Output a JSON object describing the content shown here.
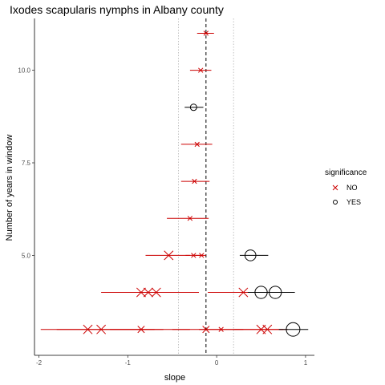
{
  "chart_data": {
    "type": "scatter",
    "title": "Ixodes scapularis nymphs in Albany county",
    "xlabel": "slope",
    "ylabel": "Number of years in window",
    "xlim": [
      -2.05,
      1.1
    ],
    "ylim": [
      2.3,
      11.4
    ],
    "x_ticks": [
      -2,
      -1,
      0,
      1
    ],
    "x_tick_labels": [
      "-2",
      "-1",
      "0",
      "1"
    ],
    "y_ticks": [
      5.0,
      7.5,
      10.0
    ],
    "y_tick_labels": [
      "5.0",
      "7.5",
      "10.0"
    ],
    "grid": false,
    "legend": {
      "title": "significance",
      "position": "right",
      "entries": [
        {
          "label": "NO",
          "shape": "x",
          "color": "#cc0000"
        },
        {
          "label": "YES",
          "shape": "circle",
          "color": "#000000"
        }
      ]
    },
    "reference_lines": {
      "mean_slope": -0.12,
      "dotted_low": -0.43,
      "dotted_high": 0.19
    },
    "series": [
      {
        "name": "NO",
        "shape": "x",
        "color": "#cc0000",
        "points": [
          {
            "x": -0.12,
            "y": 11,
            "xmin": -0.22,
            "xmax": -0.03,
            "size": 1
          },
          {
            "x": -0.18,
            "y": 10,
            "xmin": -0.3,
            "xmax": -0.06,
            "size": 1
          },
          {
            "x": -0.22,
            "y": 8,
            "xmin": -0.4,
            "xmax": -0.05,
            "size": 1
          },
          {
            "x": -0.25,
            "y": 7,
            "xmin": -0.4,
            "xmax": -0.08,
            "size": 1
          },
          {
            "x": -0.3,
            "y": 6,
            "xmin": -0.56,
            "xmax": -0.09,
            "size": 1
          },
          {
            "x": -0.54,
            "y": 5,
            "xmin": -0.8,
            "xmax": -0.3,
            "size": 2
          },
          {
            "x": -0.26,
            "y": 5,
            "xmin": -0.35,
            "xmax": -0.17,
            "size": 1
          },
          {
            "x": -0.17,
            "y": 5,
            "xmin": -0.24,
            "xmax": -0.12,
            "size": 1
          },
          {
            "x": -0.85,
            "y": 4,
            "xmin": -1.3,
            "xmax": -0.2,
            "size": 2
          },
          {
            "x": -0.77,
            "y": 4,
            "xmin": -1.1,
            "xmax": -0.3,
            "size": 2
          },
          {
            "x": -0.68,
            "y": 4,
            "xmin": -1.0,
            "xmax": -0.2,
            "size": 2
          },
          {
            "x": 0.3,
            "y": 4,
            "xmin": -0.1,
            "xmax": 0.6,
            "size": 2
          },
          {
            "x": -1.45,
            "y": 3,
            "xmin": -1.98,
            "xmax": -0.7,
            "size": 2
          },
          {
            "x": -1.3,
            "y": 3,
            "xmin": -1.8,
            "xmax": -0.6,
            "size": 2
          },
          {
            "x": -0.85,
            "y": 3,
            "xmin": -1.2,
            "xmax": -0.3,
            "size": 1.5
          },
          {
            "x": -0.12,
            "y": 3,
            "xmin": -0.5,
            "xmax": 0.25,
            "size": 1.5
          },
          {
            "x": 0.05,
            "y": 3,
            "xmin": -0.2,
            "xmax": 0.3,
            "size": 1
          },
          {
            "x": 0.5,
            "y": 3,
            "xmin": 0.2,
            "xmax": 0.75,
            "size": 2
          },
          {
            "x": 0.57,
            "y": 3,
            "xmin": 0.25,
            "xmax": 0.8,
            "size": 2
          }
        ]
      },
      {
        "name": "YES",
        "shape": "circle",
        "color": "#000000",
        "points": [
          {
            "x": -0.26,
            "y": 9,
            "xmin": -0.36,
            "xmax": -0.15,
            "size": 1
          },
          {
            "x": 0.38,
            "y": 5,
            "xmin": 0.26,
            "xmax": 0.58,
            "size": 2
          },
          {
            "x": 0.5,
            "y": 4,
            "xmin": 0.35,
            "xmax": 0.7,
            "size": 2.3
          },
          {
            "x": 0.66,
            "y": 4,
            "xmin": 0.5,
            "xmax": 0.88,
            "size": 2.3
          },
          {
            "x": 0.86,
            "y": 3,
            "xmin": 0.7,
            "xmax": 1.03,
            "size": 2.6
          }
        ]
      }
    ]
  }
}
